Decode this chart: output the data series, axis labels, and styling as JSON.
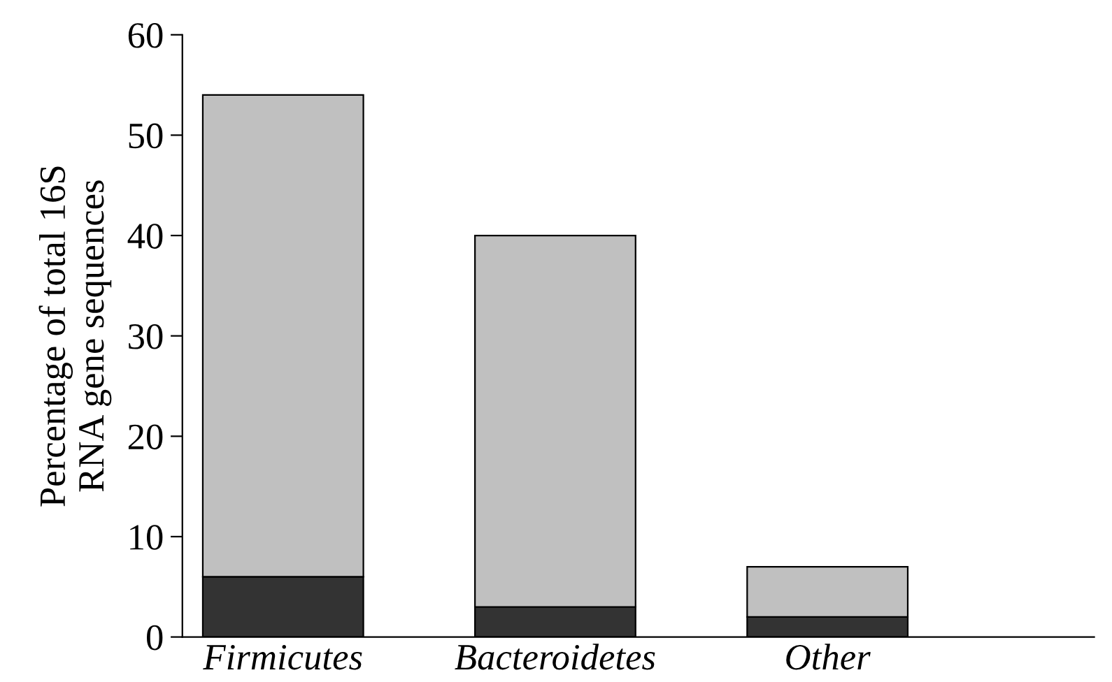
{
  "chart_data": {
    "type": "bar",
    "stacked": true,
    "ylabel": "Percentage of total 16S\nRNA gene sequences",
    "categories": [
      "Firmicutes",
      "Bacteroidetes",
      "Other"
    ],
    "series": [
      {
        "color": "#333333",
        "values": [
          6,
          3,
          2
        ]
      },
      {
        "color": "#c0c0c0",
        "values": [
          48,
          37,
          5
        ]
      }
    ],
    "ylim": [
      0,
      60
    ],
    "yticks": [
      0,
      10,
      20,
      30,
      40,
      50,
      60
    ],
    "grid": false,
    "legend": false
  }
}
